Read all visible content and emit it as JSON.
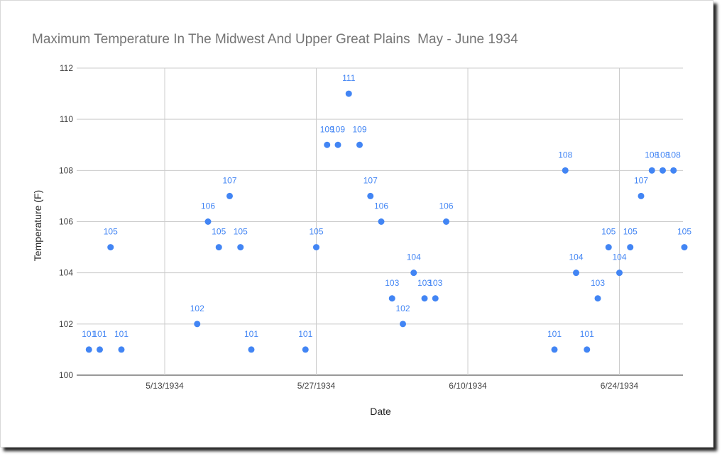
{
  "chart_data": {
    "type": "scatter",
    "title": "Maximum Temperature In The Midwest And Upper Great Plains  May - June 1934",
    "xlabel": "Date",
    "ylabel": "Temperature (F)",
    "ylim": [
      100,
      112
    ],
    "y_ticks": [
      100,
      102,
      104,
      106,
      108,
      110,
      112
    ],
    "xlim": [
      "1934-05-05",
      "1934-06-30"
    ],
    "x_ticks": [
      {
        "date": "1934-05-13",
        "label": "5/13/1934"
      },
      {
        "date": "1934-05-27",
        "label": "5/27/1934"
      },
      {
        "date": "1934-06-10",
        "label": "6/10/1934"
      },
      {
        "date": "1934-06-24",
        "label": "6/24/1934"
      }
    ],
    "grid": true,
    "point_color": "#4285f4",
    "points": [
      {
        "x": "1934-05-06",
        "y": 101,
        "label": "101"
      },
      {
        "x": "1934-05-07",
        "y": 101,
        "label": "101"
      },
      {
        "x": "1934-05-08",
        "y": 105,
        "label": "105"
      },
      {
        "x": "1934-05-09",
        "y": 101,
        "label": "101"
      },
      {
        "x": "1934-05-16",
        "y": 102,
        "label": "102"
      },
      {
        "x": "1934-05-17",
        "y": 106,
        "label": "106"
      },
      {
        "x": "1934-05-18",
        "y": 105,
        "label": "105"
      },
      {
        "x": "1934-05-19",
        "y": 107,
        "label": "107"
      },
      {
        "x": "1934-05-20",
        "y": 105,
        "label": "105"
      },
      {
        "x": "1934-05-21",
        "y": 101,
        "label": "101"
      },
      {
        "x": "1934-05-26",
        "y": 101,
        "label": "101"
      },
      {
        "x": "1934-05-27",
        "y": 105,
        "label": "105"
      },
      {
        "x": "1934-05-28",
        "y": 109,
        "label": "109"
      },
      {
        "x": "1934-05-29",
        "y": 109,
        "label": "109"
      },
      {
        "x": "1934-05-30",
        "y": 111,
        "label": "111"
      },
      {
        "x": "1934-05-31",
        "y": 109,
        "label": "109"
      },
      {
        "x": "1934-06-01",
        "y": 107,
        "label": "107"
      },
      {
        "x": "1934-06-02",
        "y": 106,
        "label": "106"
      },
      {
        "x": "1934-06-03",
        "y": 103,
        "label": "103"
      },
      {
        "x": "1934-06-04",
        "y": 102,
        "label": "102"
      },
      {
        "x": "1934-06-05",
        "y": 104,
        "label": "104"
      },
      {
        "x": "1934-06-06",
        "y": 103,
        "label": "103"
      },
      {
        "x": "1934-06-07",
        "y": 103,
        "label": "103"
      },
      {
        "x": "1934-06-08",
        "y": 106,
        "label": "106"
      },
      {
        "x": "1934-06-18",
        "y": 101,
        "label": "101"
      },
      {
        "x": "1934-06-19",
        "y": 108,
        "label": "108"
      },
      {
        "x": "1934-06-20",
        "y": 104,
        "label": "104"
      },
      {
        "x": "1934-06-21",
        "y": 101,
        "label": "101"
      },
      {
        "x": "1934-06-22",
        "y": 103,
        "label": "103"
      },
      {
        "x": "1934-06-23",
        "y": 105,
        "label": "105"
      },
      {
        "x": "1934-06-24",
        "y": 104,
        "label": "104"
      },
      {
        "x": "1934-06-25",
        "y": 105,
        "label": "105"
      },
      {
        "x": "1934-06-26",
        "y": 107,
        "label": "107"
      },
      {
        "x": "1934-06-27",
        "y": 108,
        "label": "108"
      },
      {
        "x": "1934-06-28",
        "y": 108,
        "label": "108"
      },
      {
        "x": "1934-06-29",
        "y": 108,
        "label": "108"
      },
      {
        "x": "1934-06-30",
        "y": 105,
        "label": "105"
      }
    ]
  }
}
